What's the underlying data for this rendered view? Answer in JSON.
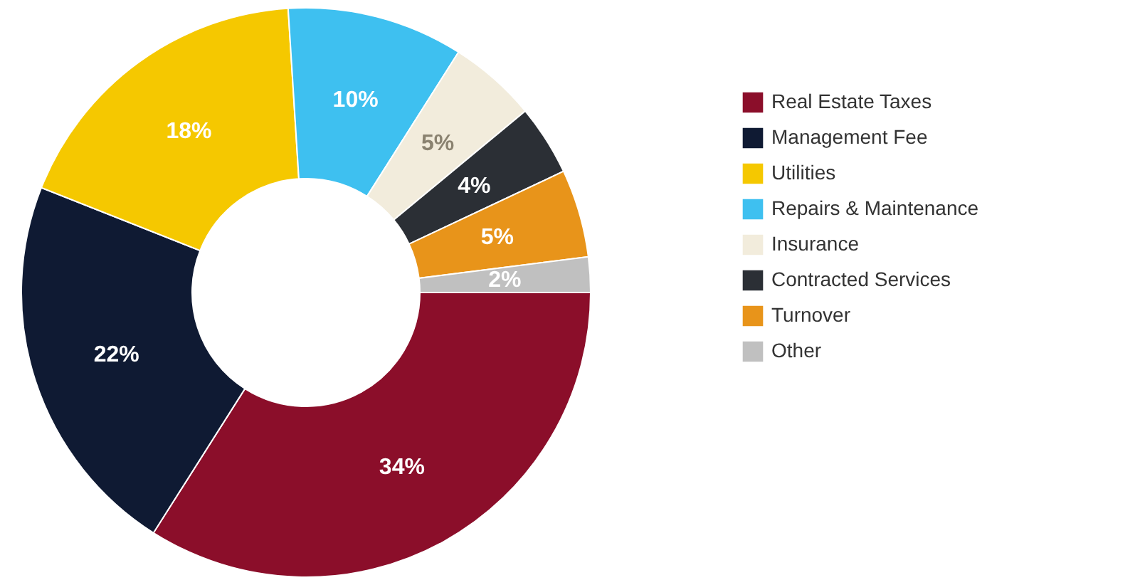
{
  "chart_data": {
    "type": "donut",
    "categories": [
      "Real Estate Taxes",
      "Management Fee",
      "Utilities",
      "Repairs & Maintenance",
      "Insurance",
      "Contracted Services",
      "Turnover",
      "Other"
    ],
    "values": [
      34,
      22,
      18,
      10,
      5,
      4,
      5,
      2
    ],
    "colors": [
      "#8b0e2a",
      "#0f1a33",
      "#f5c800",
      "#3ec0f0",
      "#f2ecdc",
      "#2b2f35",
      "#e8941a",
      "#c0c0c0"
    ],
    "value_labels": [
      "34%",
      "22%",
      "18%",
      "10%",
      "5%",
      "4%",
      "5%",
      "2%"
    ],
    "legend": "right"
  }
}
